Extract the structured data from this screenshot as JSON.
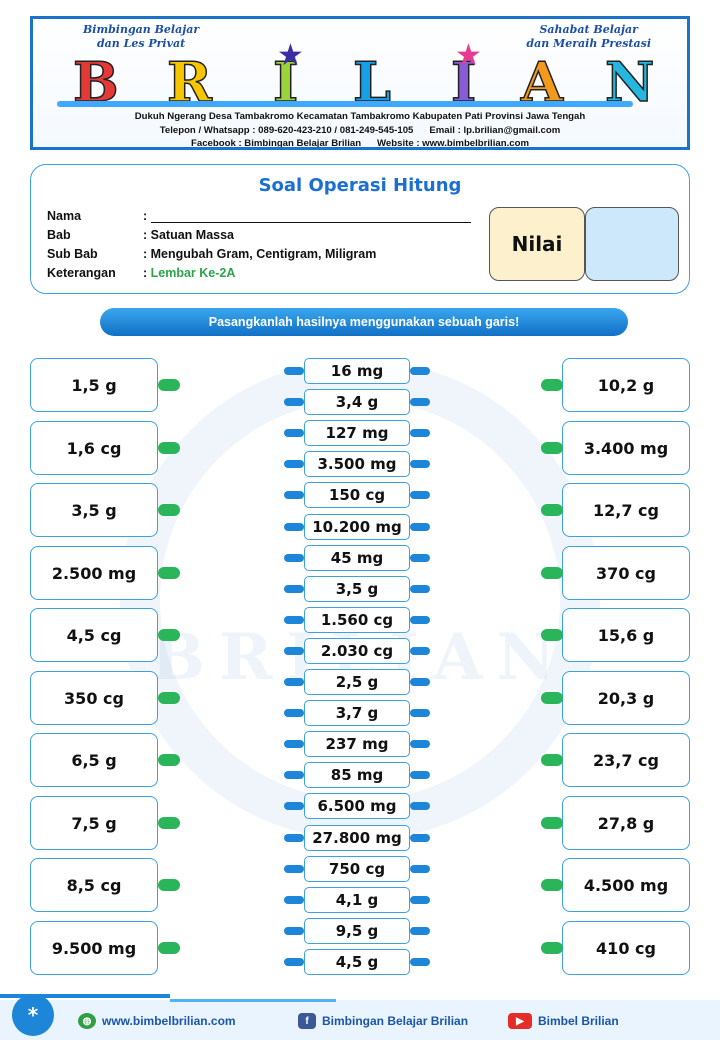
{
  "header": {
    "tagline_left": [
      "Bimbingan Belajar",
      "dan Les Privat"
    ],
    "tagline_right": [
      "Sahabat Belajar",
      "dan Meraih Prestasi"
    ],
    "brand_letters": [
      "B",
      "R",
      "I",
      "L",
      "I",
      "A",
      "N"
    ],
    "address": "Dukuh Ngerang Desa Tambakromo Kecamatan Tambakromo Kabupaten Pati Provinsi Jawa Tengah",
    "contact": "Telepon / Whatsapp : 089-620-423-210 / 081-249-545-105      Email : lp.brilian@gmail.com",
    "social": "Facebook : Bimbingan Belajar Brilian      Website : www.bimbelbrilian.com"
  },
  "card": {
    "title": "Soal Operasi Hitung",
    "fields": [
      {
        "label": "Nama",
        "value": ":"
      },
      {
        "label": "Bab",
        "value": ": Satuan Massa"
      },
      {
        "label": "Sub Bab",
        "value": ": Mengubah Gram, Centigram, Miligram"
      },
      {
        "label": "Keterangan",
        "value": ": ",
        "value_extra": "Lembar Ke-2A"
      }
    ],
    "nilai_label": "Nilai"
  },
  "instruction": "Pasangkanlah hasilnya menggunakan sebuah garis!",
  "left_items": [
    "1,5 g",
    "1,6 cg",
    "3,5 g",
    "2.500 mg",
    "4,5 cg",
    "350 cg",
    "6,5 g",
    "7,5 g",
    "8,5 cg",
    "9.500 mg"
  ],
  "middle_items": [
    "16 mg",
    "3,4 g",
    "127 mg",
    "3.500 mg",
    "150 cg",
    "10.200 mg",
    "45 mg",
    "3,5 g",
    "1.560 cg",
    "2.030 cg",
    "2,5 g",
    "3,7 g",
    "237 mg",
    "85 mg",
    "6.500 mg",
    "27.800 mg",
    "750 cg",
    "4,1 g",
    "9,5 g",
    "4,5 g"
  ],
  "right_items": [
    "10,2 g",
    "3.400 mg",
    "12,7 cg",
    "370 cg",
    "15,6 g",
    "20,3 g",
    "23,7 cg",
    "27,8 g",
    "4.500 mg",
    "410 cg"
  ],
  "footer": {
    "star": "*",
    "website": "www.bimbelbrilian.com",
    "facebook": "Bimbingan Belajar Brilian",
    "youtube": "Bimbel Brilian"
  },
  "colors": {
    "accent_blue": "#1d86d8",
    "connector_green": "#2ab55a",
    "border_blue": "#3da0e0",
    "title_blue": "#1a6fd1",
    "nilai_fill": "#fdf0cc",
    "nilai_box_fill": "#cde8fb"
  }
}
